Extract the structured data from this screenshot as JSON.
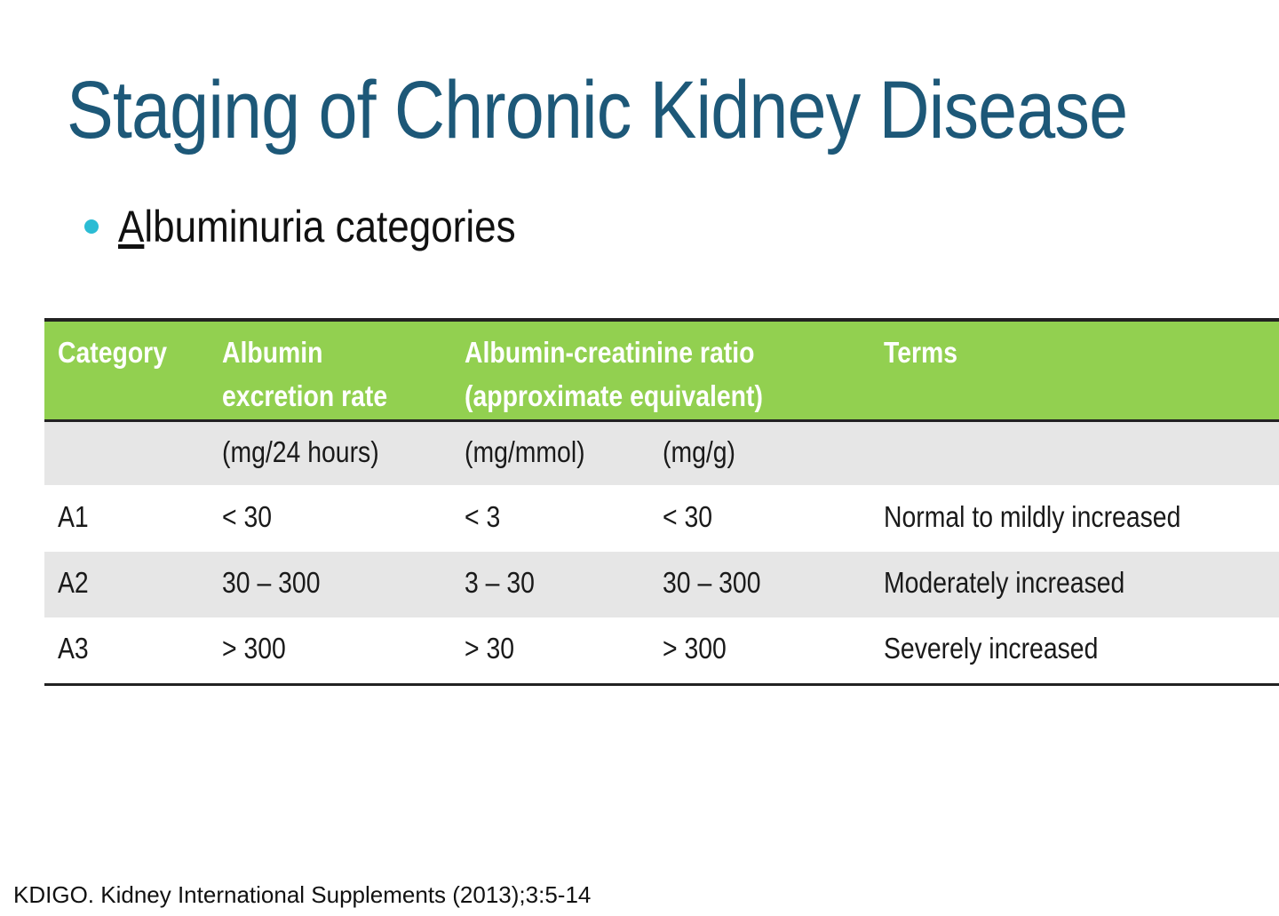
{
  "header": {
    "title": "Staging of Chronic Kidney Disease",
    "bullet": "Albuminuria categories"
  },
  "table": {
    "header": [
      "Category",
      "Albumin\nexcretion rate",
      "Albumin-creatinine ratio\n(approximate equivalent)",
      "Terms"
    ],
    "units": [
      "(mg/24 hours)",
      "(mg/mmol)",
      "(mg/g)"
    ],
    "rows": [
      [
        "A1",
        "< 30",
        "< 3",
        "< 30",
        "Normal to mildly increased"
      ],
      [
        "A2",
        "30 – 300",
        "3 – 30",
        "30 – 300",
        "Moderately increased"
      ],
      [
        "A3",
        "> 300",
        "> 30",
        "> 300",
        "Severely increased"
      ]
    ]
  },
  "footer": {
    "source": "KDIGO. Kidney International Supplements (2013);3:5-14"
  }
}
